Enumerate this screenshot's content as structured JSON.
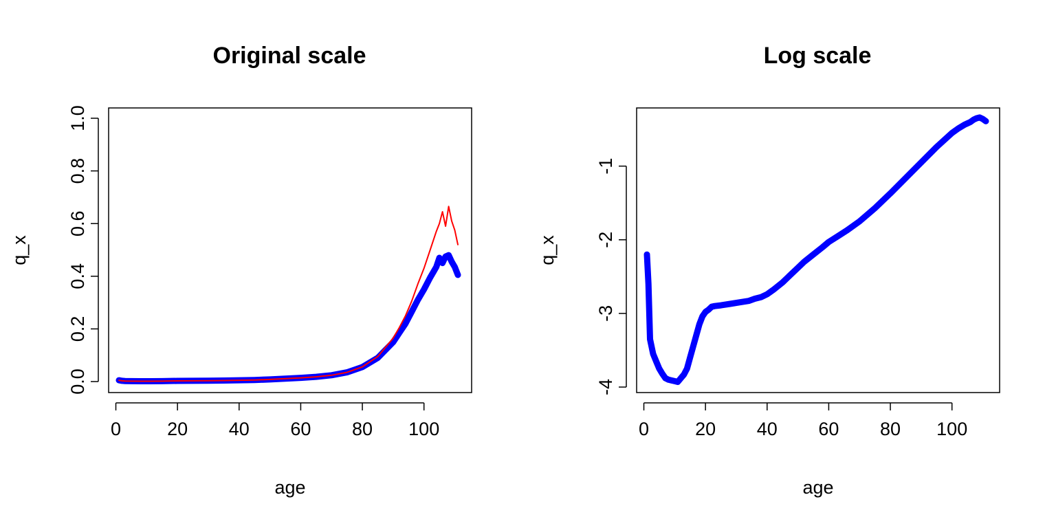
{
  "chart_data": [
    {
      "type": "line",
      "title": "Original scale",
      "xlabel": "age",
      "ylabel": "q_x",
      "xlim": [
        1,
        111
      ],
      "ylim": [
        0,
        1
      ],
      "x_ticks": [
        0,
        20,
        40,
        60,
        80,
        100
      ],
      "y_ticks": [
        0.0,
        0.2,
        0.4,
        0.6,
        0.8,
        1.0
      ],
      "y_tick_labels": [
        "0.0",
        "0.2",
        "0.4",
        "0.6",
        "0.8",
        "1.0"
      ],
      "grid": false,
      "series": [
        {
          "color": "#0000ff",
          "style": "thick",
          "x": [
            1,
            2,
            3,
            5,
            8,
            11,
            15,
            20,
            25,
            30,
            35,
            40,
            45,
            50,
            55,
            60,
            65,
            70,
            75,
            80,
            85,
            90,
            92,
            94,
            96,
            98,
            100,
            102,
            104,
            105,
            106,
            107,
            108,
            109,
            110,
            111
          ],
          "y": [
            0.005,
            0.003,
            0.002,
            0.0015,
            0.0013,
            0.0013,
            0.0015,
            0.0025,
            0.003,
            0.0035,
            0.004,
            0.005,
            0.006,
            0.008,
            0.011,
            0.014,
            0.018,
            0.024,
            0.035,
            0.055,
            0.09,
            0.15,
            0.185,
            0.22,
            0.265,
            0.31,
            0.35,
            0.395,
            0.435,
            0.47,
            0.45,
            0.475,
            0.48,
            0.455,
            0.435,
            0.405
          ]
        },
        {
          "color": "#ff0000",
          "style": "thin",
          "x": [
            1,
            2,
            3,
            5,
            8,
            11,
            15,
            20,
            25,
            30,
            35,
            40,
            45,
            50,
            55,
            60,
            65,
            70,
            75,
            80,
            85,
            90,
            92,
            94,
            96,
            98,
            100,
            102,
            104,
            105,
            106,
            107,
            108,
            109,
            110,
            111
          ],
          "y": [
            0.005,
            0.003,
            0.002,
            0.0015,
            0.0013,
            0.0013,
            0.0015,
            0.0025,
            0.003,
            0.0035,
            0.004,
            0.005,
            0.006,
            0.008,
            0.011,
            0.014,
            0.018,
            0.024,
            0.035,
            0.056,
            0.095,
            0.165,
            0.205,
            0.25,
            0.305,
            0.37,
            0.43,
            0.5,
            0.57,
            0.6,
            0.645,
            0.59,
            0.665,
            0.61,
            0.575,
            0.52
          ]
        }
      ]
    },
    {
      "type": "line",
      "title": "Log scale",
      "xlabel": "age",
      "ylabel": "q_x",
      "xlim": [
        1,
        111
      ],
      "ylim": [
        -4,
        -0.35
      ],
      "x_ticks": [
        0,
        20,
        40,
        60,
        80,
        100
      ],
      "y_ticks": [
        -4,
        -3,
        -2,
        -1
      ],
      "y_tick_labels": [
        "-4",
        "-3",
        "-2",
        "-1"
      ],
      "grid": false,
      "series": [
        {
          "color": "#0000ff",
          "style": "thick",
          "x": [
            1,
            1.5,
            2,
            3,
            4,
            5,
            6,
            7,
            8,
            9,
            10,
            11,
            12,
            13,
            14,
            15,
            16,
            17,
            18,
            19,
            20,
            21,
            22,
            23,
            25,
            28,
            31,
            34,
            36,
            38,
            40,
            42,
            45,
            48,
            50,
            52,
            55,
            58,
            60,
            63,
            66,
            70,
            75,
            80,
            85,
            90,
            95,
            100,
            102,
            104,
            105,
            106,
            107,
            108,
            109,
            110,
            111
          ],
          "y": [
            -2.2,
            -2.6,
            -3.35,
            -3.55,
            -3.65,
            -3.75,
            -3.82,
            -3.88,
            -3.9,
            -3.91,
            -3.92,
            -3.93,
            -3.88,
            -3.83,
            -3.75,
            -3.6,
            -3.45,
            -3.3,
            -3.15,
            -3.04,
            -2.98,
            -2.95,
            -2.91,
            -2.9,
            -2.89,
            -2.87,
            -2.85,
            -2.83,
            -2.8,
            -2.78,
            -2.74,
            -2.68,
            -2.58,
            -2.46,
            -2.38,
            -2.3,
            -2.2,
            -2.1,
            -2.03,
            -1.95,
            -1.87,
            -1.75,
            -1.57,
            -1.37,
            -1.16,
            -0.95,
            -0.74,
            -0.55,
            -0.49,
            -0.44,
            -0.42,
            -0.4,
            -0.37,
            -0.35,
            -0.34,
            -0.36,
            -0.39
          ]
        }
      ]
    }
  ]
}
